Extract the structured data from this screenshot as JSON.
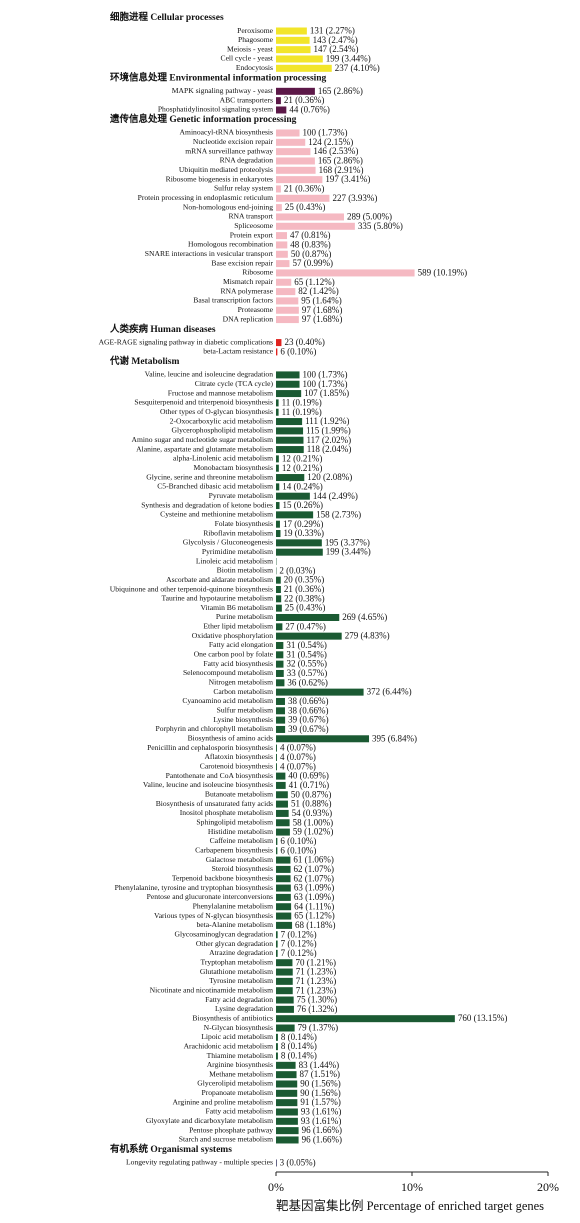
{
  "chart_data": {
    "type": "bar",
    "orientation": "horizontal",
    "x_label": "靶基因富集比例  Percentage of enriched target genes",
    "xlim": [
      0,
      20
    ],
    "xticks": [
      {
        "value": 0,
        "label": "0%"
      },
      {
        "value": 10,
        "label": "10%"
      },
      {
        "value": 20,
        "label": "20%"
      }
    ],
    "groups": [
      {
        "name": "细胞进程  Cellular processes",
        "color": "#f2e52a",
        "categories": [
          "Peroxisome",
          "Phagosome",
          "Meiosis - yeast",
          "Cell cycle - yeast",
          "Endocytosis"
        ],
        "values": [
          2.27,
          2.47,
          2.54,
          3.44,
          4.1
        ],
        "value_labels": [
          "131 (2.27%)",
          "143 (2.47%)",
          "147 (2.54%)",
          "199 (3.44%)",
          "237 (4.10%)"
        ]
      },
      {
        "name": "环境信息处理  Environmental information processing",
        "color": "#5c1848",
        "categories": [
          "MAPK signaling pathway - yeast",
          "ABC transporters",
          "Phosphatidylinositol signaling system"
        ],
        "values": [
          2.86,
          0.36,
          0.76
        ],
        "value_labels": [
          "165 (2.86%)",
          "21 (0.36%)",
          "44 (0.76%)"
        ]
      },
      {
        "name": "遗传信息处理  Genetic information processing",
        "color": "#f5b9c2",
        "categories": [
          "Aminoacyl-tRNA biosynthesis",
          "Nucleotide excision repair",
          "mRNA surveillance pathway",
          "RNA degradation",
          "Ubiquitin mediated proteolysis",
          "Ribosome biogenesis in eukaryotes",
          "Sulfur relay system",
          "Protein processing in endoplasmic reticulum",
          "Non-homologous end-joining",
          "RNA transport",
          "Spliceosome",
          "Protein export",
          "Homologous recombination",
          "SNARE interactions in vesicular transport",
          "Base excision repair",
          "Ribosome",
          "Mismatch repair",
          "RNA polymerase",
          "Basal transcription factors",
          "Proteasome",
          "DNA replication"
        ],
        "values": [
          1.73,
          2.15,
          2.53,
          2.86,
          2.91,
          3.41,
          0.36,
          3.93,
          0.43,
          5.0,
          5.8,
          0.81,
          0.83,
          0.87,
          0.99,
          10.19,
          1.12,
          1.42,
          1.64,
          1.68,
          1.68
        ],
        "value_labels": [
          "100 (1.73%)",
          "124 (2.15%)",
          "146 (2.53%)",
          "165 (2.86%)",
          "168 (2.91%)",
          "197 (3.41%)",
          "21 (0.36%)",
          "227 (3.93%)",
          "25 (0.43%)",
          "289 (5.00%)",
          "335 (5.80%)",
          "47 (0.81%)",
          "48 (0.83%)",
          "50 (0.87%)",
          "57 (0.99%)",
          "589 (10.19%)",
          "65 (1.12%)",
          "82 (1.42%)",
          "95 (1.64%)",
          "97 (1.68%)",
          "97 (1.68%)"
        ]
      },
      {
        "name": "人类疾病  Human diseases",
        "color": "#e0221e",
        "categories": [
          "AGE-RAGE signaling pathway in diabetic complications",
          "beta-Lactam resistance"
        ],
        "values": [
          0.4,
          0.1
        ],
        "value_labels": [
          "23 (0.40%)",
          "6 (0.10%)"
        ]
      },
      {
        "name": "代谢  Metabolism",
        "color": "#1b5a33",
        "categories": [
          "Valine, leucine and isoleucine degradation",
          "Citrate cycle (TCA cycle)",
          "Fructose and mannose metabolism",
          "Sesquiterpenoid and triterpenoid biosynthesis",
          "Other types of O-glycan biosynthesis",
          "2-Oxocarboxylic acid metabolism",
          "Glycerophospholipid metabolism",
          "Amino sugar and nucleotide sugar metabolism",
          "Alanine, aspartate and glutamate metabolism",
          "alpha-Linolenic acid metabolism",
          "Monobactam biosynthesis",
          "Glycine, serine and threonine metabolism",
          "C5-Branched dibasic acid metabolism",
          "Pyruvate metabolism",
          "Synthesis and degradation of ketone bodies",
          "Cysteine and methionine metabolism",
          "Folate biosynthesis",
          "Riboflavin metabolism",
          "Glycolysis / Gluconeogenesis",
          "Pyrimidine metabolism",
          "Linoleic acid metabolism",
          "Biotin metabolism",
          "Ascorbate and aldarate metabolism",
          "Ubiquinone and other terpenoid-quinone biosynthesis",
          "Taurine and hypotaurine metabolism",
          "Vitamin B6 metabolism",
          "Purine metabolism",
          "Ether lipid metabolism",
          "Oxidative phosphorylation",
          "Fatty acid elongation",
          "One carbon pool by folate",
          "Fatty acid biosynthesis",
          "Selenocompound metabolism",
          "Nitrogen metabolism",
          "Carbon metabolism",
          "Cyanoamino acid metabolism",
          "Sulfur metabolism",
          "Lysine biosynthesis",
          "Porphyrin and chlorophyll metabolism",
          "Biosynthesis of amino acids",
          "Penicillin and cephalosporin biosynthesis",
          "Aflatoxin biosynthesis",
          "Carotenoid biosynthesis",
          "Pantothenate and CoA biosynthesis",
          "Valine, leucine and isoleucine biosynthesis",
          "Butanoate metabolism",
          "Biosynthesis of unsaturated fatty acids",
          "Inositol phosphate metabolism",
          "Sphingolipid metabolism",
          "Histidine metabolism",
          "Caffeine metabolism",
          "Carbapenem biosynthesis",
          "Galactose metabolism",
          "Steroid biosynthesis",
          "Terpenoid backbone biosynthesis",
          "Phenylalanine, tyrosine and tryptophan biosynthesis",
          "Pentose and glucuronate interconversions",
          "Phenylalanine metabolism",
          "Various types of N-glycan biosynthesis",
          "beta-Alanine metabolism",
          "Glycosaminoglycan degradation",
          "Other glycan degradation",
          "Atrazine degradation",
          "Tryptophan metabolism",
          "Glutathione metabolism",
          "Tyrosine metabolism",
          "Nicotinate and nicotinamide metabolism",
          "Fatty acid degradation",
          "Lysine degradation",
          "Biosynthesis of antibiotics",
          "N-Glycan biosynthesis",
          "Lipoic acid metabolism",
          "Arachidonic acid metabolism",
          "Thiamine metabolism",
          "Arginine biosynthesis",
          "Methane metabolism",
          "Glycerolipid metabolism",
          "Propanoate metabolism",
          "Arginine and proline metabolism",
          "Fatty acid metabolism",
          "Glyoxylate and dicarboxylate metabolism",
          "Pentose phosphate pathway",
          "Starch and sucrose metabolism"
        ],
        "values": [
          1.73,
          1.73,
          1.85,
          0.19,
          0.19,
          1.92,
          1.99,
          2.02,
          2.04,
          0.21,
          0.21,
          2.08,
          0.24,
          2.49,
          0.26,
          2.73,
          0.29,
          0.33,
          3.37,
          3.44,
          0.03,
          0.03,
          0.35,
          0.36,
          0.38,
          0.43,
          4.65,
          0.47,
          4.83,
          0.54,
          0.54,
          0.55,
          0.57,
          0.62,
          6.44,
          0.66,
          0.66,
          0.67,
          0.67,
          6.84,
          0.07,
          0.07,
          0.07,
          0.69,
          0.71,
          0.87,
          0.88,
          0.93,
          1.0,
          1.02,
          0.1,
          0.1,
          1.06,
          1.07,
          1.07,
          1.09,
          1.09,
          1.11,
          1.12,
          1.18,
          0.12,
          0.12,
          0.12,
          1.21,
          1.23,
          1.23,
          1.23,
          1.3,
          1.32,
          13.15,
          1.37,
          0.14,
          0.14,
          0.14,
          1.44,
          1.51,
          1.56,
          1.56,
          1.57,
          1.61,
          1.61,
          1.66,
          1.66
        ],
        "value_labels": [
          "100 (1.73%)",
          "100 (1.73%)",
          "107 (1.85%)",
          "11 (0.19%)",
          "11 (0.19%)",
          "111 (1.92%)",
          "115 (1.99%)",
          "117 (2.02%)",
          "118 (2.04%)",
          "12 (0.21%)",
          "12 (0.21%)",
          "120 (2.08%)",
          "14 (0.24%)",
          "144 (2.49%)",
          "15 (0.26%)",
          "158 (2.73%)",
          "17 (0.29%)",
          "19 (0.33%)",
          "195 (3.37%)",
          "199 (3.44%)",
          null,
          "2 (0.03%)",
          "20 (0.35%)",
          "21 (0.36%)",
          "22 (0.38%)",
          "25 (0.43%)",
          "269 (4.65%)",
          "27 (0.47%)",
          "279 (4.83%)",
          "31 (0.54%)",
          "31 (0.54%)",
          "32 (0.55%)",
          "33 (0.57%)",
          "36 (0.62%)",
          "372 (6.44%)",
          "38 (0.66%)",
          "38 (0.66%)",
          "39 (0.67%)",
          "39 (0.67%)",
          "395 (6.84%)",
          "4 (0.07%)",
          "4 (0.07%)",
          "4 (0.07%)",
          "40 (0.69%)",
          "41 (0.71%)",
          "50 (0.87%)",
          "51 (0.88%)",
          "54 (0.93%)",
          "58 (1.00%)",
          "59 (1.02%)",
          "6 (0.10%)",
          "6 (0.10%)",
          "61 (1.06%)",
          "62 (1.07%)",
          "62 (1.07%)",
          "63 (1.09%)",
          "63 (1.09%)",
          "64 (1.11%)",
          "65 (1.12%)",
          "68 (1.18%)",
          "7 (0.12%)",
          "7 (0.12%)",
          "7 (0.12%)",
          "70 (1.21%)",
          "71 (1.23%)",
          "71 (1.23%)",
          "71 (1.23%)",
          "75 (1.30%)",
          "76 (1.32%)",
          "760 (13.15%)",
          "79 (1.37%)",
          "8 (0.14%)",
          "8 (0.14%)",
          "8 (0.14%)",
          "83 (1.44%)",
          "87 (1.51%)",
          "90 (1.56%)",
          "90 (1.56%)",
          "91 (1.57%)",
          "93 (1.61%)",
          "93 (1.61%)",
          "96 (1.66%)",
          "96 (1.66%)"
        ]
      },
      {
        "name": "有机系统  Organismal systems",
        "color": "#1c1c4a",
        "categories": [
          "Longevity regulating pathway - multiple species"
        ],
        "values": [
          0.05
        ],
        "value_labels": [
          "3 (0.05%)"
        ]
      }
    ]
  }
}
